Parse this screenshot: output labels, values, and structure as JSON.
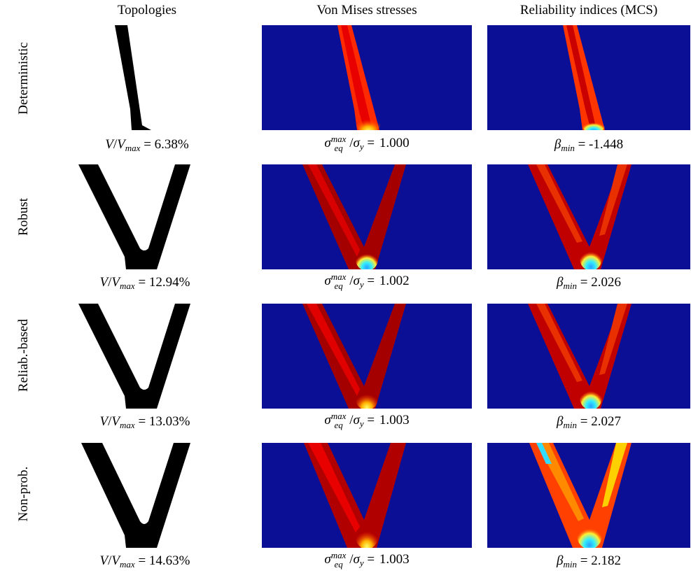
{
  "headers": {
    "topologies": "Topologies",
    "stresses": "Von Mises stresses",
    "reliability": "Reliability indices (MCS)"
  },
  "rows": [
    {
      "label": "Deterministic",
      "volume": "6.38%",
      "stress": "1.000",
      "beta": "-1.448"
    },
    {
      "label": "Robust",
      "volume": "12.94%",
      "stress": "1.002",
      "beta": "2.026"
    },
    {
      "label": "Reliab.-based",
      "volume": "13.03%",
      "stress": "1.003",
      "beta": "2.027"
    },
    {
      "label": "Non-prob.",
      "volume": "14.63%",
      "stress": "1.003",
      "beta": "2.182"
    }
  ],
  "colors": {
    "field_background": "#0b0f96",
    "stress_low": "#0b0f96",
    "stress_high": "#e60000",
    "stress_mid": "#a00000",
    "hot_yellow": "#ffff33",
    "cyan": "#33ddff",
    "solid": "#000000"
  }
}
